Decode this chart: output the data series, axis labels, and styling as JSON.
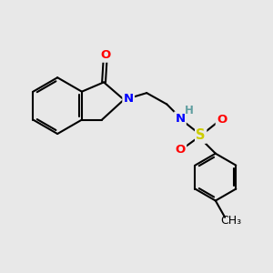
{
  "bg_color": "#e8e8e8",
  "atom_colors": {
    "O": "#ff0000",
    "N": "#0000ff",
    "S": "#cccc00",
    "C": "#000000",
    "H": "#5f9ea0"
  },
  "bond_color": "#000000",
  "bond_width": 1.5,
  "font_size": 9.5
}
